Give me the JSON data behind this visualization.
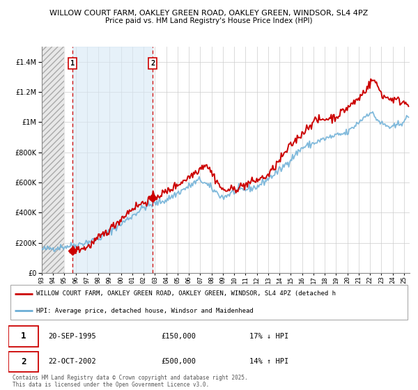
{
  "title_line1": "WILLOW COURT FARM, OAKLEY GREEN ROAD, OAKLEY GREEN, WINDSOR, SL4 4PZ",
  "title_line2": "Price paid vs. HM Land Registry's House Price Index (HPI)",
  "legend_line1": "WILLOW COURT FARM, OAKLEY GREEN ROAD, OAKLEY GREEN, WINDSOR, SL4 4PZ (detached h",
  "legend_line2": "HPI: Average price, detached house, Windsor and Maidenhead",
  "footer": "Contains HM Land Registry data © Crown copyright and database right 2025.\nThis data is licensed under the Open Government Licence v3.0.",
  "sale1_date": "20-SEP-1995",
  "sale1_price": "£150,000",
  "sale1_hpi": "17% ↓ HPI",
  "sale1_x": 1995.72,
  "sale1_y": 150000,
  "sale2_date": "22-OCT-2002",
  "sale2_price": "£500,000",
  "sale2_hpi": "14% ↑ HPI",
  "sale2_x": 2002.8,
  "sale2_y": 500000,
  "ylim": [
    0,
    1500000
  ],
  "xlim_left": 1993.0,
  "xlim_right": 2025.5,
  "red_line_color": "#cc0000",
  "blue_line_color": "#6baed6",
  "hatch_end": 1995.0,
  "shade_start": 1995.72,
  "shade_end": 2002.8,
  "shade_color": "#d6e8f5",
  "annotation_box_color": "#cc0000",
  "grid_color": "#cccccc",
  "plot_bg": "#ffffff"
}
